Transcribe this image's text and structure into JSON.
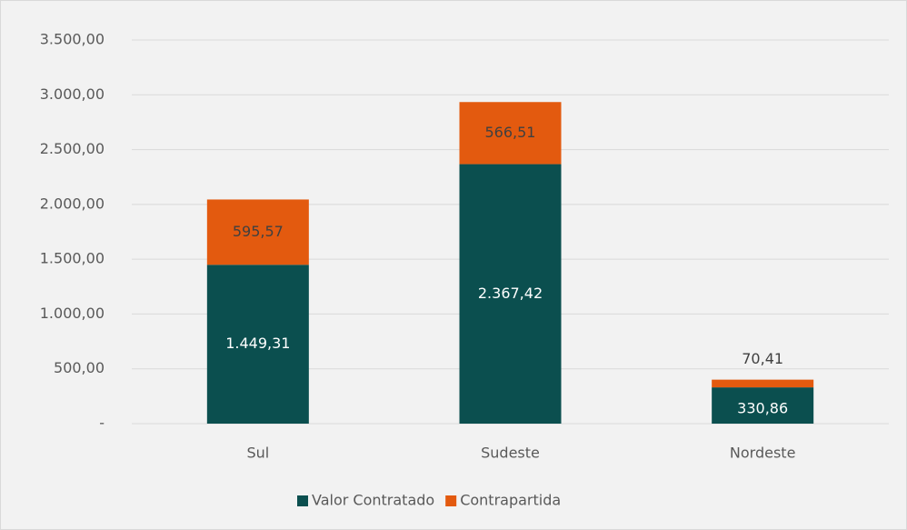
{
  "chart_data": {
    "type": "stacked_bar",
    "categories": [
      "Sul",
      "Sudeste",
      "Nordeste"
    ],
    "series": [
      {
        "name": "Valor Contratado",
        "color": "#0b4f4f",
        "values": [
          1449.31,
          2367.42,
          330.86
        ],
        "value_labels": [
          "1.449,31",
          "2.367,42",
          "330,86"
        ]
      },
      {
        "name": "Contrapartida",
        "color": "#e35a0f",
        "values": [
          595.57,
          566.51,
          70.41
        ],
        "value_labels": [
          "595,57",
          "566,51",
          "70,41"
        ]
      }
    ],
    "ylim": [
      0,
      3500
    ],
    "yticks": [
      {
        "value": 0,
        "label": "-"
      },
      {
        "value": 500,
        "label": "500,00"
      },
      {
        "value": 1000,
        "label": "1.000,00"
      },
      {
        "value": 1500,
        "label": "1.500,00"
      },
      {
        "value": 2000,
        "label": "2.000,00"
      },
      {
        "value": 2500,
        "label": "2.500,00"
      },
      {
        "value": 3000,
        "label": "3.000,00"
      },
      {
        "value": 3500,
        "label": "3.500,00"
      }
    ],
    "grid": true,
    "legend": "bottom"
  }
}
